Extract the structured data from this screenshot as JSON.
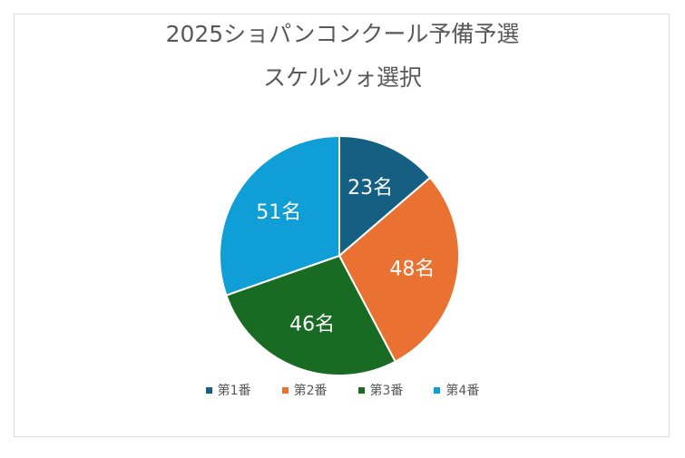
{
  "chart_data": {
    "type": "pie",
    "title": [
      "2025ショパンコンクール予備予選",
      "スケルツォ選択"
    ],
    "categories": [
      "第1番",
      "第2番",
      "第3番",
      "第4番"
    ],
    "values": [
      23,
      48,
      46,
      51
    ],
    "data_labels": [
      "23名",
      "48名",
      "46名",
      "51名"
    ],
    "colors": [
      "#156082",
      "#e97132",
      "#196b24",
      "#0f9ed5"
    ],
    "legend_position": "bottom",
    "start_angle": "12 o'clock, clockwise"
  }
}
